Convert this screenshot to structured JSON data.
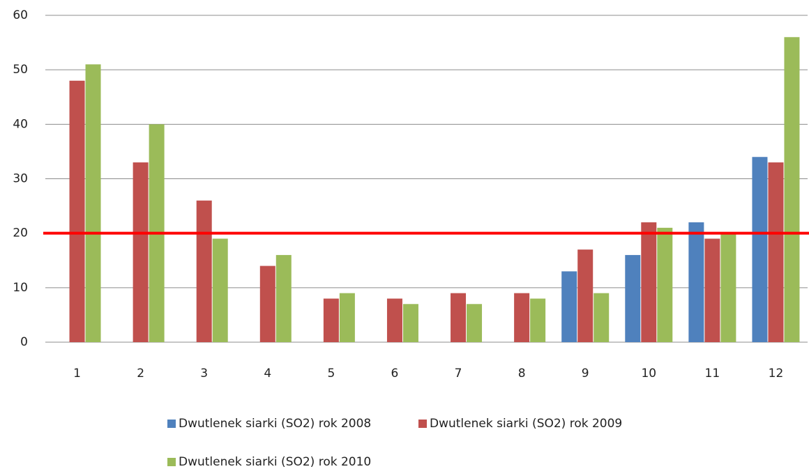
{
  "chart_data": {
    "type": "bar",
    "categories": [
      "1",
      "2",
      "3",
      "4",
      "5",
      "6",
      "7",
      "8",
      "9",
      "10",
      "11",
      "12"
    ],
    "series": [
      {
        "name": "Dwutlenek siarki (SO2) rok 2008",
        "color": "#4f81bd",
        "values": [
          null,
          null,
          null,
          null,
          null,
          null,
          null,
          null,
          13,
          16,
          22,
          34
        ]
      },
      {
        "name": "Dwutlenek siarki (SO2) rok 2009",
        "color": "#c0504d",
        "values": [
          48,
          33,
          26,
          14,
          8,
          8,
          9,
          9,
          17,
          22,
          19,
          33
        ]
      },
      {
        "name": "Dwutlenek siarki (SO2) rok 2010",
        "color": "#9bbb59",
        "values": [
          51,
          40,
          19,
          16,
          9,
          7,
          7,
          8,
          9,
          21,
          20,
          56
        ]
      }
    ],
    "ylim": [
      0,
      60
    ],
    "yticks": [
      0,
      10,
      20,
      30,
      40,
      50,
      60
    ],
    "grid": true,
    "reference_line": {
      "value": 20,
      "color": "#ff0000"
    },
    "legend": "bottom"
  }
}
